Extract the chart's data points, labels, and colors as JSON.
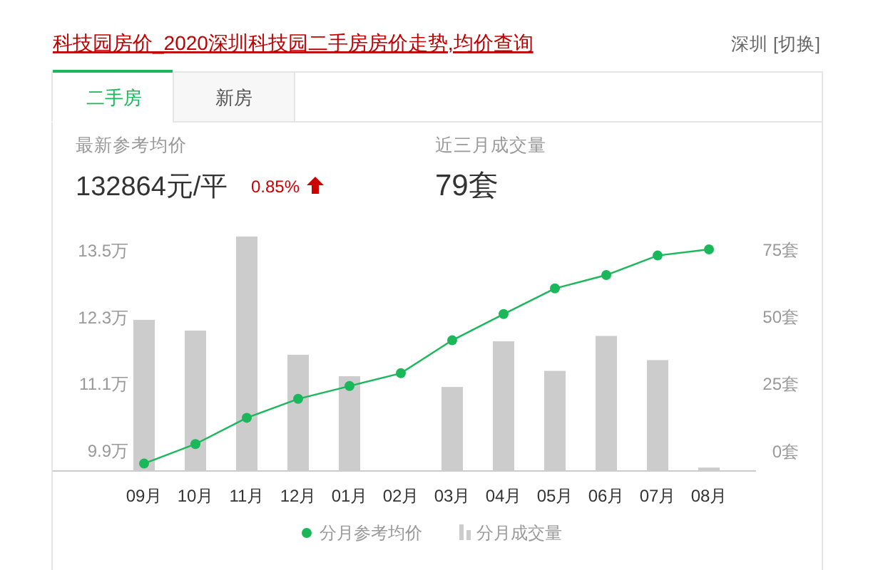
{
  "chart_data": {
    "type": "bar",
    "title": "科技园房价_2020深圳科技园二手房房价走势,均价查询",
    "annotations": [
      "深圳 [切换]",
      "二手房",
      "新房",
      "最新参考均价",
      "132864元/平",
      "0.85%",
      "近三月成交量",
      "79套"
    ],
    "categories": [
      "09月",
      "10月",
      "11月",
      "12月",
      "01月",
      "02月",
      "03月",
      "04月",
      "05月",
      "06月",
      "07月",
      "08月"
    ],
    "series": [
      {
        "name": "分月成交量",
        "axis": "y2",
        "color": "#cccccc",
        "base": [
          -7,
          -7,
          -7,
          -7,
          -7,
          null,
          -7,
          -7,
          -7,
          -7,
          -7,
          -7
        ],
        "values": [
          56,
          52,
          87,
          43,
          35,
          null,
          31,
          48,
          37,
          50,
          41,
          1
        ]
      },
      {
        "name": "分月参考均价",
        "type": "line",
        "color": "#1bb75b",
        "marker": "circle",
        "values": [
          9.68,
          10.03,
          10.5,
          10.84,
          11.07,
          11.3,
          11.89,
          12.36,
          12.82,
          13.06,
          13.41,
          13.52
        ]
      }
    ],
    "ylim": [
      9.56,
      13.75
    ],
    "yticks": [
      {
        "value": 9.9,
        "label": "9.9万"
      },
      {
        "value": 11.1,
        "label": "11.1万"
      },
      {
        "value": 12.3,
        "label": "12.3万"
      },
      {
        "value": 13.5,
        "label": "13.5万"
      }
    ],
    "y2lim": [
      -7,
      80
    ],
    "y2ticks": [
      {
        "value": 0,
        "label": "0套"
      },
      {
        "value": 25,
        "label": "25套"
      },
      {
        "value": 50,
        "label": "50套"
      },
      {
        "value": 75,
        "label": "75套"
      }
    ],
    "grid": false,
    "legend": "bottom"
  }
}
